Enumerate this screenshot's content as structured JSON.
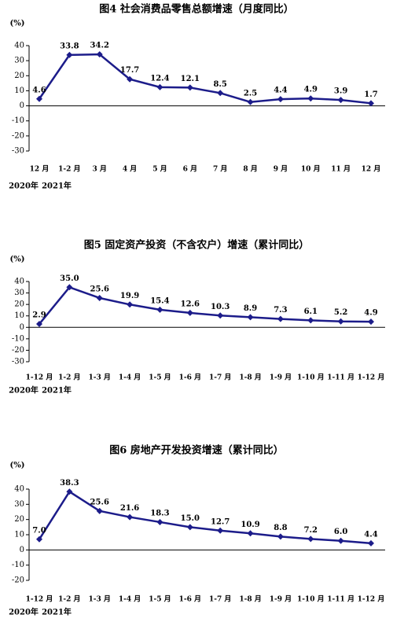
{
  "chart_data": [
    {
      "type": "line",
      "title": "图4  社会消费品零售总额增速（月度同比）",
      "y_label": "(%)",
      "categories": [
        "12 月",
        "1-2 月",
        "3 月",
        "4 月",
        "5 月",
        "6 月",
        "7 月",
        "8 月",
        "9 月",
        "10 月",
        "11 月",
        "12 月"
      ],
      "x_group_labels": [
        "2020年",
        "2021年"
      ],
      "values": [
        4.6,
        33.8,
        34.2,
        17.7,
        12.4,
        12.1,
        8.5,
        2.5,
        4.4,
        4.9,
        3.9,
        1.7
      ],
      "color": "#1c1c8a",
      "ylim": [
        -30,
        40
      ],
      "yticks": [
        -30,
        -20,
        -10,
        0,
        10,
        20,
        30,
        40
      ],
      "grid": false
    },
    {
      "type": "line",
      "title": "图5  固定资产投资（不含农户）增速（累计同比）",
      "y_label": "(%)",
      "categories": [
        "1-12 月",
        "1-2 月",
        "1-3 月",
        "1-4 月",
        "1-5 月",
        "1-6 月",
        "1-7 月",
        "1-8 月",
        "1-9 月",
        "1-10 月",
        "1-11 月",
        "1-12 月"
      ],
      "x_group_labels": [
        "2020年",
        "2021年"
      ],
      "values": [
        2.9,
        35.0,
        25.6,
        19.9,
        15.4,
        12.6,
        10.3,
        8.9,
        7.3,
        6.1,
        5.2,
        4.9
      ],
      "value_labels": [
        "2.9",
        "35.0",
        "25.6",
        "19.9",
        "15.4",
        "12.6",
        "10.3",
        "8.9",
        "7.3",
        "6.1",
        "5.2",
        "4.9"
      ],
      "color": "#1c1c8a",
      "ylim": [
        -30,
        40
      ],
      "yticks": [
        -30,
        -20,
        -10,
        0,
        10,
        20,
        30,
        40
      ],
      "grid": false
    },
    {
      "type": "line",
      "title": "图6  房地产开发投资增速（累计同比）",
      "y_label": "(%)",
      "categories": [
        "1-12 月",
        "1-2 月",
        "1-3 月",
        "1-4 月",
        "1-5 月",
        "1-6 月",
        "1-7 月",
        "1-8 月",
        "1-9 月",
        "1-10 月",
        "1-11 月",
        "1-12 月"
      ],
      "x_group_labels": [
        "2020年",
        "2021年"
      ],
      "values": [
        7.0,
        38.3,
        25.6,
        21.6,
        18.3,
        15.0,
        12.7,
        10.9,
        8.8,
        7.2,
        6.0,
        4.4
      ],
      "value_labels": [
        "7.0",
        "38.3",
        "25.6",
        "21.6",
        "18.3",
        "15.0",
        "12.7",
        "10.9",
        "8.8",
        "7.2",
        "6.0",
        "4.4"
      ],
      "color": "#1c1c8a",
      "ylim": [
        -20,
        40
      ],
      "yticks": [
        -20,
        -10,
        0,
        10,
        20,
        30,
        40
      ],
      "grid": false
    }
  ]
}
